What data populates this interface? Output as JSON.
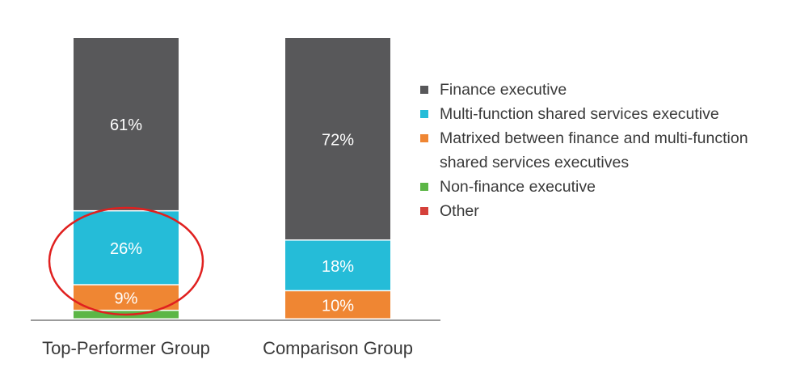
{
  "chart_data": {
    "type": "bar",
    "stacked": true,
    "categories": [
      "Top-Performer Group",
      "Comparison Group"
    ],
    "series": [
      {
        "name": "Finance executive",
        "color": "#58585a",
        "values": [
          61,
          72
        ],
        "labels": [
          "61%",
          "72%"
        ]
      },
      {
        "name": "Multi-function shared services executive",
        "color": "#25bcd8",
        "values": [
          26,
          18
        ],
        "labels": [
          "26%",
          "18%"
        ]
      },
      {
        "name": "Matrixed between finance and multi-function shared services executives",
        "color": "#ef8633",
        "values": [
          9,
          10
        ],
        "labels": [
          "9%",
          "10%"
        ]
      },
      {
        "name": "Non-finance executive",
        "color": "#5cb646",
        "values": [
          3,
          0
        ],
        "labels": [
          "",
          ""
        ]
      },
      {
        "name": "Other",
        "color": "#d5403a",
        "values": [
          0,
          0
        ],
        "labels": [
          "",
          ""
        ]
      }
    ],
    "ylim": [
      0,
      100
    ],
    "legend_position": "right",
    "annotation": "red ellipse highlighting the 26% segment of Top-Performer Group"
  }
}
